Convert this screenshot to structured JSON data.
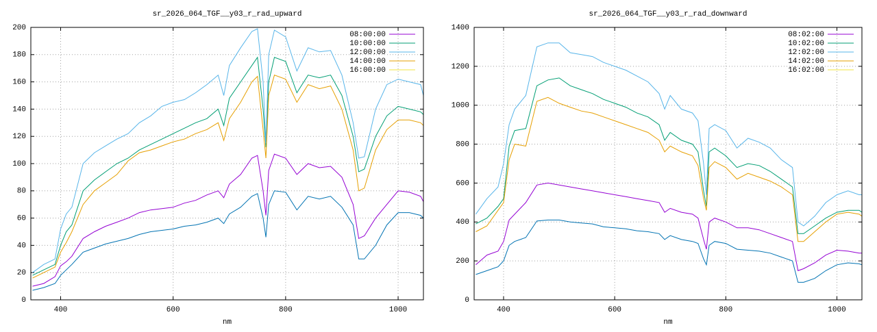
{
  "chart_data": [
    {
      "type": "line",
      "title": "sr_2026_064_TGF__y03_r_rad_upward",
      "x_label": "nm",
      "x": [
        350,
        370,
        390,
        400,
        410,
        420,
        440,
        460,
        480,
        500,
        520,
        540,
        560,
        580,
        600,
        620,
        640,
        660,
        680,
        690,
        700,
        720,
        740,
        750,
        760,
        765,
        770,
        780,
        800,
        820,
        840,
        860,
        880,
        900,
        920,
        930,
        940,
        960,
        980,
        1000,
        1020,
        1040,
        1045
      ],
      "xlim": [
        347,
        1045
      ],
      "xticks": [
        400,
        600,
        800,
        1000
      ],
      "ylim": [
        0,
        200
      ],
      "yticks": [
        0,
        20,
        40,
        60,
        80,
        100,
        120,
        140,
        160,
        180,
        200
      ],
      "grid": true,
      "legend": "top-right",
      "series": [
        {
          "name": "08:00:00",
          "color": "#9400d3",
          "values": [
            10,
            12,
            17,
            25,
            28,
            32,
            45,
            50,
            54,
            57,
            60,
            64,
            66,
            67,
            68,
            71,
            73,
            77,
            80,
            75,
            85,
            92,
            104,
            106,
            80,
            62,
            95,
            107,
            104,
            92,
            100,
            97,
            98,
            90,
            70,
            45,
            47,
            60,
            70,
            80,
            79,
            76,
            72
          ]
        },
        {
          "name": "10:00:00",
          "color": "#009e73",
          "values": [
            18,
            22,
            26,
            40,
            50,
            55,
            80,
            88,
            94,
            100,
            104,
            110,
            114,
            118,
            122,
            126,
            130,
            133,
            140,
            128,
            148,
            160,
            172,
            178,
            140,
            112,
            160,
            178,
            175,
            152,
            165,
            163,
            165,
            150,
            120,
            94,
            96,
            120,
            135,
            142,
            140,
            138,
            136
          ]
        },
        {
          "name": "12:00:00",
          "color": "#56b4e9",
          "values": [
            20,
            26,
            30,
            52,
            63,
            68,
            100,
            108,
            113,
            118,
            122,
            130,
            135,
            142,
            145,
            147,
            152,
            158,
            165,
            150,
            172,
            185,
            197,
            199,
            160,
            115,
            180,
            198,
            193,
            168,
            185,
            182,
            183,
            165,
            130,
            104,
            105,
            140,
            158,
            162,
            160,
            158,
            150
          ]
        },
        {
          "name": "14:00:00",
          "color": "#e69f00",
          "values": [
            16,
            20,
            24,
            35,
            42,
            50,
            70,
            80,
            86,
            92,
            102,
            108,
            110,
            113,
            116,
            118,
            122,
            125,
            130,
            117,
            133,
            145,
            160,
            164,
            125,
            104,
            150,
            165,
            162,
            145,
            158,
            155,
            157,
            140,
            110,
            80,
            82,
            110,
            125,
            132,
            132,
            130,
            128
          ]
        },
        {
          "name": "16:00:00",
          "color": "#f0e442",
          "values": [
            null,
            null,
            null,
            null,
            null,
            null,
            null,
            null,
            null,
            null,
            null,
            null,
            null,
            null,
            null,
            null,
            null,
            null,
            null,
            null,
            null,
            null,
            null,
            null,
            null,
            null,
            null,
            null,
            null,
            null,
            null,
            null,
            null,
            null,
            null,
            null,
            null,
            null,
            null,
            null,
            null,
            null,
            null
          ]
        },
        {
          "color": "#0072b2",
          "values": [
            7,
            9,
            12,
            18,
            22,
            26,
            35,
            38,
            41,
            43,
            45,
            48,
            50,
            51,
            52,
            54,
            55,
            57,
            60,
            56,
            63,
            68,
            76,
            78,
            60,
            46,
            70,
            80,
            79,
            66,
            76,
            74,
            76,
            68,
            55,
            30,
            30,
            40,
            55,
            64,
            64,
            62,
            60
          ]
        }
      ]
    },
    {
      "type": "line",
      "title": "sr_2026_064_TGF__y03_r_rad_downward",
      "x_label": "nm",
      "x": [
        350,
        370,
        390,
        400,
        410,
        420,
        440,
        460,
        480,
        500,
        520,
        540,
        560,
        580,
        600,
        620,
        640,
        660,
        680,
        690,
        700,
        720,
        740,
        750,
        760,
        765,
        770,
        780,
        800,
        820,
        840,
        860,
        880,
        900,
        920,
        930,
        940,
        960,
        980,
        1000,
        1020,
        1040,
        1045
      ],
      "xlim": [
        347,
        1045
      ],
      "xticks": [
        400,
        600,
        800,
        1000
      ],
      "ylim": [
        0,
        1400
      ],
      "yticks": [
        0,
        200,
        400,
        600,
        800,
        1000,
        1200,
        1400
      ],
      "grid": true,
      "legend": "top-right",
      "series": [
        {
          "name": "08:02:00",
          "color": "#9400d3",
          "values": [
            180,
            230,
            250,
            300,
            410,
            440,
            500,
            590,
            600,
            590,
            580,
            570,
            560,
            550,
            540,
            530,
            520,
            510,
            500,
            450,
            470,
            450,
            440,
            420,
            310,
            260,
            400,
            420,
            400,
            370,
            370,
            360,
            340,
            320,
            300,
            150,
            160,
            190,
            230,
            255,
            250,
            240,
            240
          ]
        },
        {
          "name": "10:02:00",
          "color": "#009e73",
          "values": [
            390,
            420,
            480,
            520,
            790,
            870,
            880,
            1100,
            1130,
            1140,
            1100,
            1080,
            1060,
            1030,
            1010,
            990,
            960,
            940,
            900,
            820,
            860,
            820,
            800,
            760,
            560,
            480,
            760,
            780,
            740,
            680,
            700,
            690,
            660,
            620,
            580,
            340,
            340,
            380,
            420,
            450,
            460,
            460,
            450
          ]
        },
        {
          "name": "12:02:00",
          "color": "#56b4e9",
          "values": [
            440,
            520,
            580,
            700,
            900,
            980,
            1050,
            1300,
            1320,
            1320,
            1270,
            1260,
            1250,
            1220,
            1200,
            1180,
            1150,
            1120,
            1060,
            980,
            1050,
            980,
            960,
            920,
            700,
            540,
            880,
            900,
            870,
            780,
            830,
            810,
            780,
            720,
            680,
            400,
            380,
            430,
            500,
            540,
            560,
            540,
            540
          ]
        },
        {
          "name": "14:02:00",
          "color": "#e69f00",
          "values": [
            350,
            380,
            460,
            500,
            720,
            800,
            790,
            1020,
            1040,
            1010,
            990,
            970,
            960,
            940,
            920,
            900,
            880,
            860,
            820,
            760,
            790,
            760,
            740,
            690,
            520,
            460,
            680,
            710,
            680,
            620,
            650,
            630,
            610,
            580,
            540,
            300,
            300,
            350,
            400,
            440,
            450,
            440,
            430
          ]
        },
        {
          "name": "16:02:00",
          "color": "#f0e442",
          "values": [
            null,
            null,
            null,
            null,
            null,
            null,
            null,
            null,
            null,
            null,
            null,
            null,
            null,
            null,
            null,
            null,
            null,
            null,
            null,
            null,
            null,
            null,
            null,
            null,
            null,
            null,
            null,
            null,
            null,
            null,
            null,
            null,
            null,
            null,
            null,
            null,
            null,
            null,
            null,
            null,
            null,
            null,
            null
          ]
        },
        {
          "color": "#0072b2",
          "values": [
            130,
            150,
            170,
            200,
            280,
            300,
            320,
            405,
            410,
            410,
            400,
            395,
            390,
            375,
            370,
            365,
            355,
            350,
            340,
            310,
            330,
            310,
            300,
            290,
            210,
            180,
            280,
            300,
            290,
            260,
            255,
            250,
            240,
            220,
            200,
            90,
            90,
            110,
            150,
            180,
            190,
            185,
            180
          ]
        }
      ]
    }
  ]
}
